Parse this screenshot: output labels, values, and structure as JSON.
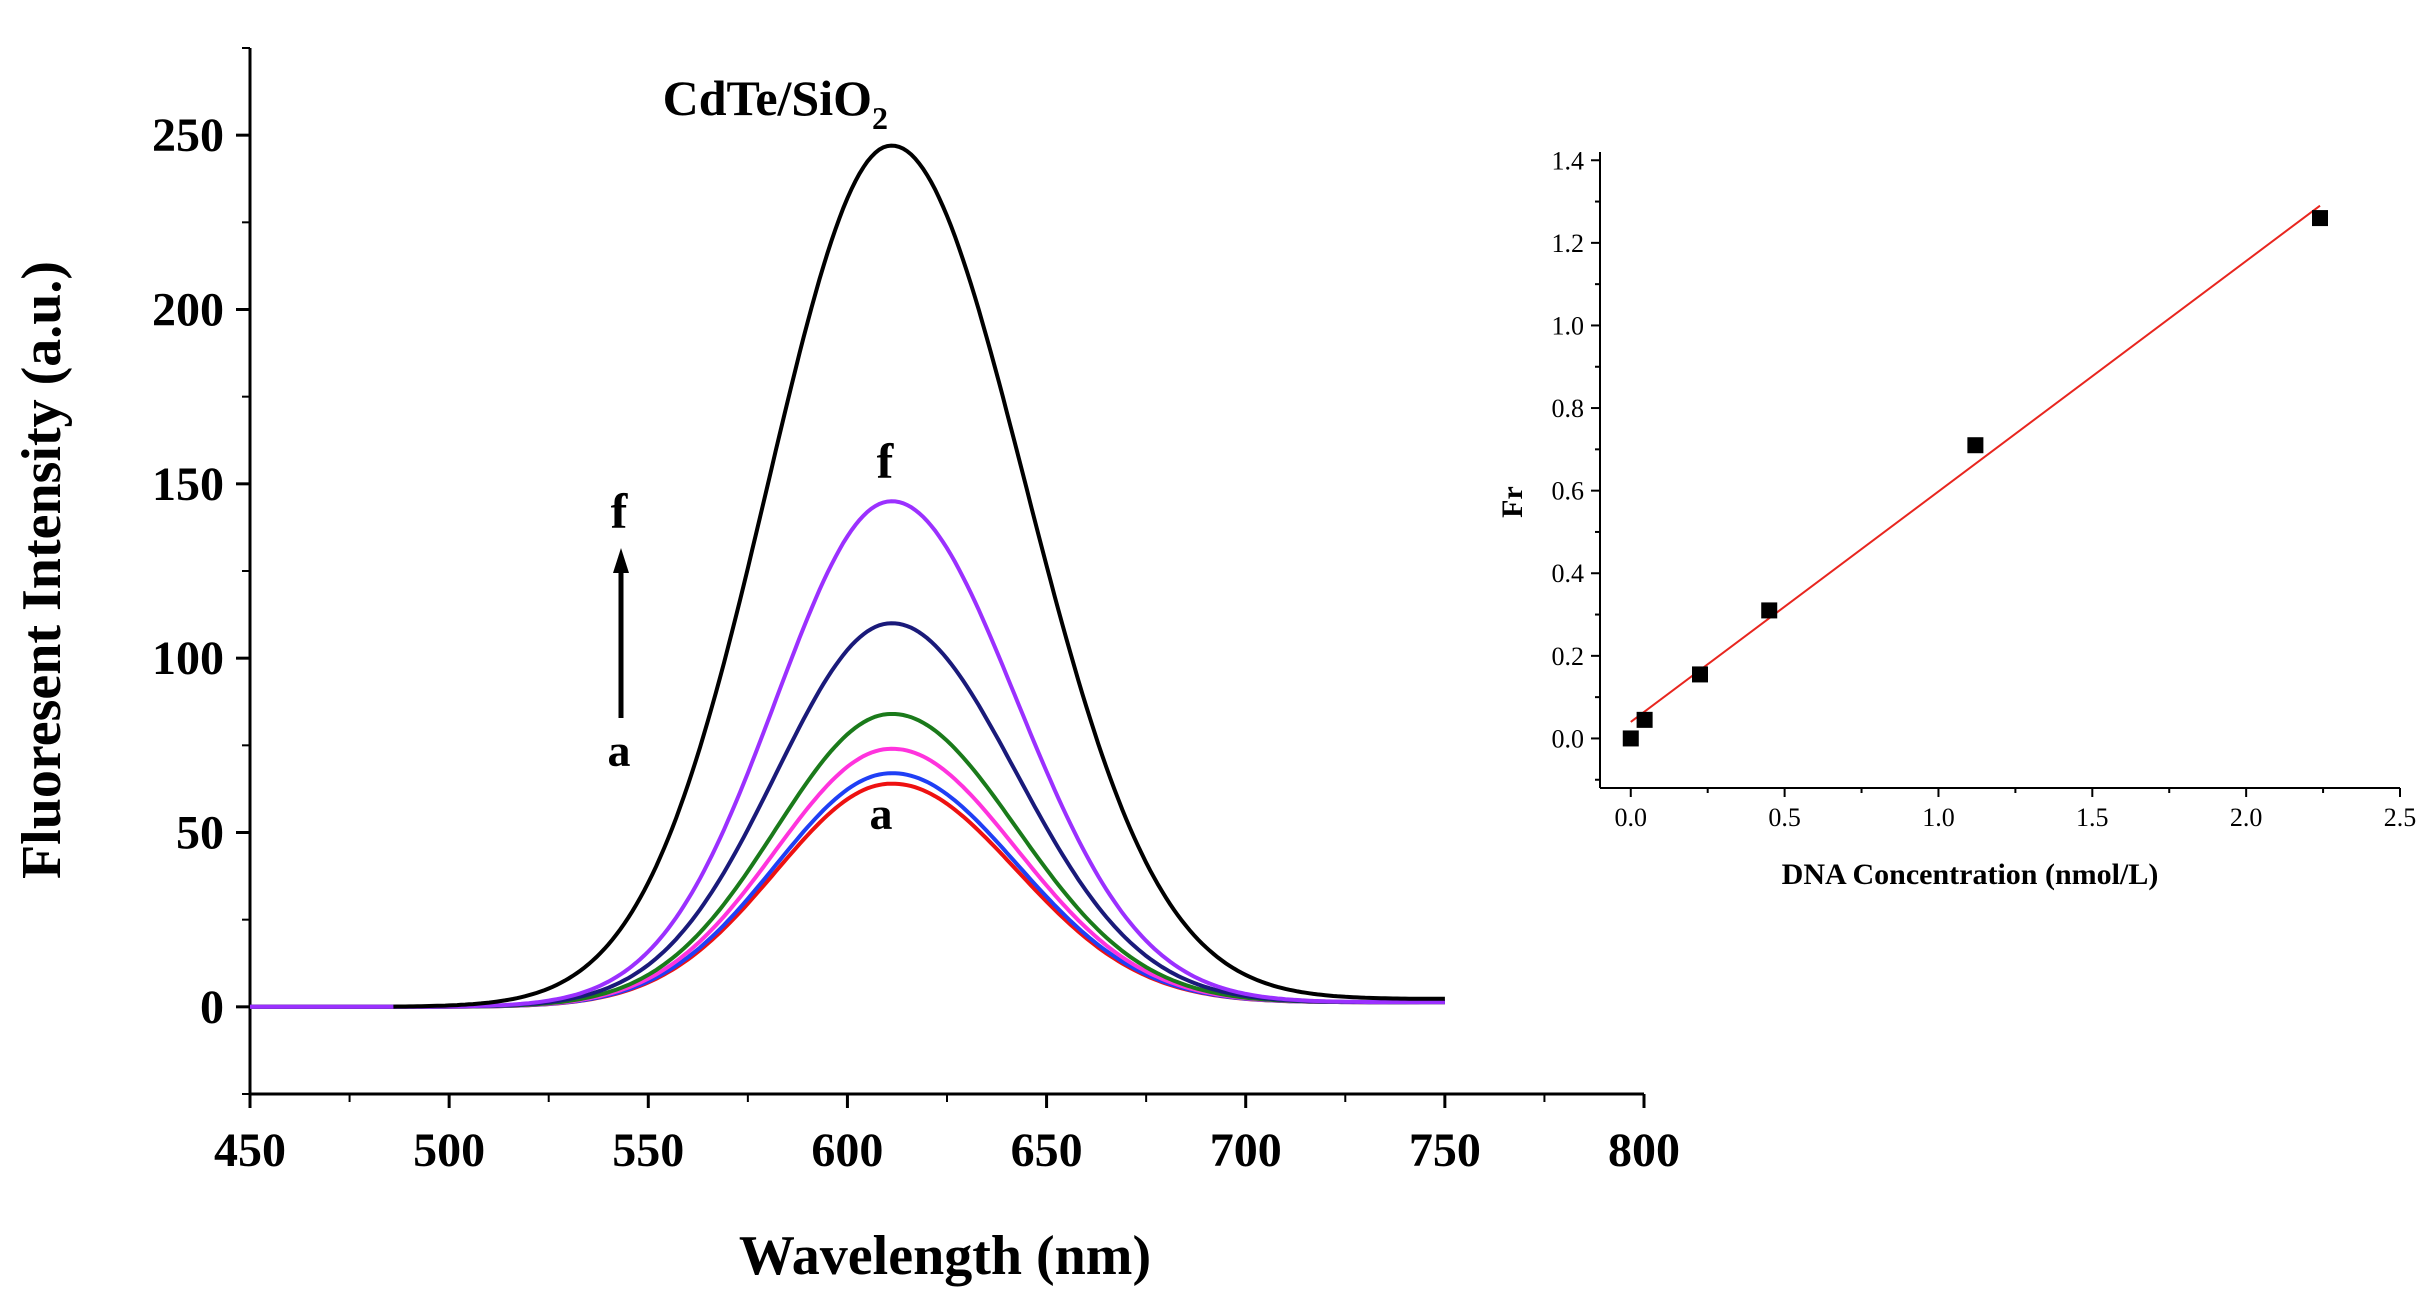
{
  "chart_data": [
    {
      "type": "line",
      "title": "CdTe/SiO",
      "title_subscript": "2",
      "xlabel": "Wavelength (nm)",
      "ylabel": "Fluoresent Intensity (a.u.)",
      "xlim": [
        450,
        800
      ],
      "ylim": [
        -25,
        275
      ],
      "xticks": [
        "450",
        "500",
        "550",
        "600",
        "650",
        "700",
        "750",
        "800"
      ],
      "yticks": [
        "0",
        "50",
        "100",
        "150",
        "200",
        "250"
      ],
      "peak_wavelength": 611,
      "series": [
        {
          "name": "CdTe/SiO2",
          "color": "#000000",
          "peak": 247,
          "sigma": 31,
          "tail": 2.5
        },
        {
          "name": "f",
          "color": "#9b30ff",
          "peak": 145,
          "sigma": 29,
          "tail": 1.5
        },
        {
          "name": "",
          "color": "#1a1a7a",
          "peak": 110,
          "sigma": 29,
          "tail": 1.5
        },
        {
          "name": "",
          "color": "#1a7a1a",
          "peak": 84,
          "sigma": 29,
          "tail": 1.5
        },
        {
          "name": "",
          "color": "#ff33dd",
          "peak": 74,
          "sigma": 29,
          "tail": 1.5
        },
        {
          "name": "",
          "color": "#1f3ff5",
          "peak": 67,
          "sigma": 29,
          "tail": 1.5
        },
        {
          "name": "a",
          "color": "#ee1111",
          "peak": 64,
          "sigma": 29,
          "tail": 1.5
        }
      ],
      "annotations": {
        "curve_top_label": "f",
        "curve_bottom_label": "a",
        "arrow_top_label": "f",
        "arrow_bottom_label": "a"
      }
    },
    {
      "type": "scatter",
      "xlabel": "DNA Concentration (nmol/L)",
      "ylabel": "Fr",
      "xlim": [
        -0.1,
        2.5
      ],
      "ylim": [
        -0.12,
        1.42
      ],
      "xticks": [
        "0.0",
        "0.5",
        "1.0",
        "1.5",
        "2.0",
        "2.5"
      ],
      "yticks": [
        "0.0",
        "0.2",
        "0.4",
        "0.6",
        "0.8",
        "1.0",
        "1.2",
        "1.4"
      ],
      "points": {
        "x": [
          0.0,
          0.045,
          0.225,
          0.45,
          1.12,
          2.24
        ],
        "y": [
          0.0,
          0.045,
          0.155,
          0.31,
          0.71,
          1.26
        ]
      },
      "fit_line": {
        "x": [
          0.0,
          2.24
        ],
        "y": [
          0.04,
          1.29
        ],
        "color": "#e8261f"
      },
      "point_color": "#000000"
    }
  ]
}
